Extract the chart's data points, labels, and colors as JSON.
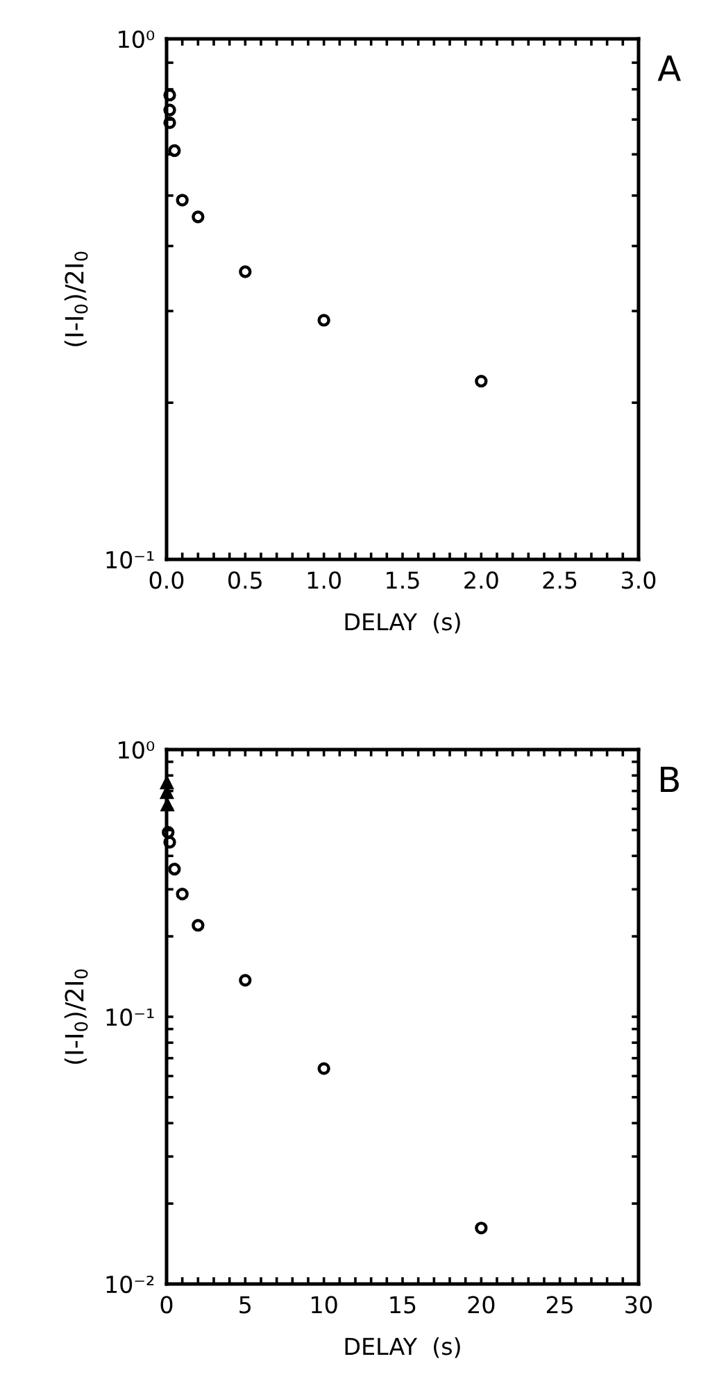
{
  "chart_data": [
    {
      "type": "scatter",
      "xlabel": "DELAY  (s)",
      "ylabel": "(I-I$_{0}$)/2I$_{0}$",
      "annotations": [
        "A"
      ],
      "log": "y",
      "marker": "circle",
      "grid": false,
      "x": [
        0.02,
        0.02,
        0.02,
        0.05,
        0.1,
        0.2,
        0.5,
        1.0,
        2.0
      ],
      "series": [
        {
          "color": "#000000",
          "values": [
            0.78,
            0.73,
            0.69,
            0.61,
            0.49,
            0.455,
            0.357,
            0.288,
            0.22
          ]
        }
      ],
      "xlim": [
        0,
        3.0
      ],
      "ylim": [
        0.1,
        1.0
      ],
      "xticks": [
        {
          "value": 0,
          "label": "0.0"
        },
        {
          "value": 0.1,
          "label": null
        },
        {
          "value": 0.2,
          "label": null
        },
        {
          "value": 0.3,
          "label": null
        },
        {
          "value": 0.4,
          "label": null
        },
        {
          "value": 0.5,
          "label": "0.5"
        },
        {
          "value": 0.6,
          "label": null
        },
        {
          "value": 0.7,
          "label": null
        },
        {
          "value": 0.8,
          "label": null
        },
        {
          "value": 0.9,
          "label": null
        },
        {
          "value": 1.0,
          "label": "1.0"
        },
        {
          "value": 1.1,
          "label": null
        },
        {
          "value": 1.2,
          "label": null
        },
        {
          "value": 1.3,
          "label": null
        },
        {
          "value": 1.4,
          "label": null
        },
        {
          "value": 1.5,
          "label": "1.5"
        },
        {
          "value": 1.6,
          "label": null
        },
        {
          "value": 1.7,
          "label": null
        },
        {
          "value": 1.8,
          "label": null
        },
        {
          "value": 1.9,
          "label": null
        },
        {
          "value": 2.0,
          "label": "2.0"
        },
        {
          "value": 2.1,
          "label": null
        },
        {
          "value": 2.2,
          "label": null
        },
        {
          "value": 2.3,
          "label": null
        },
        {
          "value": 2.4,
          "label": null
        },
        {
          "value": 2.5,
          "label": "2.5"
        },
        {
          "value": 2.6,
          "label": null
        },
        {
          "value": 2.7,
          "label": null
        },
        {
          "value": 2.8,
          "label": null
        },
        {
          "value": 2.9,
          "label": null
        },
        {
          "value": 3.0,
          "label": "3.0"
        }
      ],
      "yticks": [
        {
          "value": 0.1,
          "label": "10⁻¹"
        },
        {
          "value": 0.2,
          "label": null
        },
        {
          "value": 0.3,
          "label": null
        },
        {
          "value": 0.4,
          "label": null
        },
        {
          "value": 0.5,
          "label": null
        },
        {
          "value": 0.6,
          "label": null
        },
        {
          "value": 0.7,
          "label": null
        },
        {
          "value": 0.8,
          "label": null
        },
        {
          "value": 0.9,
          "label": null
        },
        {
          "value": 1.0,
          "label": "10⁰"
        }
      ]
    },
    {
      "type": "scatter",
      "xlabel": "DELAY  (s)",
      "ylabel": "(I-I$_{0}$)/2I$_{0}$",
      "annotations": [
        "B"
      ],
      "log": "y",
      "marker": "circle",
      "grid": false,
      "series": [
        {
          "color": "#000000",
          "x": [
            0.1,
            0.2,
            0.5,
            1,
            2,
            5,
            10,
            20
          ],
          "values": [
            0.49,
            0.45,
            0.357,
            0.288,
            0.22,
            0.137,
            0.064,
            0.0162
          ]
        },
        {
          "color": "#000000",
          "type": "scatter",
          "marker": "triangle",
          "x": [
            0.02,
            0.02,
            0.05
          ],
          "values": [
            0.75,
            0.69,
            0.62
          ]
        }
      ],
      "xlim": [
        0,
        30
      ],
      "ylim": [
        0.01,
        1.0
      ],
      "xticks": [
        0,
        {
          "value": 1,
          "label": null
        },
        {
          "value": 2,
          "label": null
        },
        {
          "value": 3,
          "label": null
        },
        {
          "value": 4,
          "label": null
        },
        5,
        {
          "value": 6,
          "label": null
        },
        {
          "value": 7,
          "label": null
        },
        {
          "value": 8,
          "label": null
        },
        {
          "value": 9,
          "label": null
        },
        10,
        {
          "value": 11,
          "label": null
        },
        {
          "value": 12,
          "label": null
        },
        {
          "value": 13,
          "label": null
        },
        {
          "value": 14,
          "label": null
        },
        15,
        {
          "value": 16,
          "label": null
        },
        {
          "value": 17,
          "label": null
        },
        {
          "value": 18,
          "label": null
        },
        {
          "value": 19,
          "label": null
        },
        20,
        {
          "value": 21,
          "label": null
        },
        {
          "value": 22,
          "label": null
        },
        {
          "value": 23,
          "label": null
        },
        {
          "value": 24,
          "label": null
        },
        25,
        {
          "value": 26,
          "label": null
        },
        {
          "value": 27,
          "label": null
        },
        {
          "value": 28,
          "label": null
        },
        {
          "value": 29,
          "label": null
        },
        30
      ],
      "yticks": [
        {
          "value": 0.01,
          "label": "10⁻²"
        },
        {
          "value": 0.02,
          "label": null
        },
        {
          "value": 0.03,
          "label": null
        },
        {
          "value": 0.04,
          "label": null
        },
        {
          "value": 0.05,
          "label": null
        },
        {
          "value": 0.06,
          "label": null
        },
        {
          "value": 0.07,
          "label": null
        },
        {
          "value": 0.08,
          "label": null
        },
        {
          "value": 0.09,
          "label": null
        },
        {
          "value": 0.1,
          "label": "10⁻¹"
        },
        {
          "value": 0.2,
          "label": null
        },
        {
          "value": 0.3,
          "label": null
        },
        {
          "value": 0.4,
          "label": null
        },
        {
          "value": 0.5,
          "label": null
        },
        {
          "value": 0.6,
          "label": null
        },
        {
          "value": 0.7,
          "label": null
        },
        {
          "value": 0.8,
          "label": null
        },
        {
          "value": 0.9,
          "label": null
        },
        {
          "value": 1.0,
          "label": "10⁰"
        }
      ]
    }
  ]
}
